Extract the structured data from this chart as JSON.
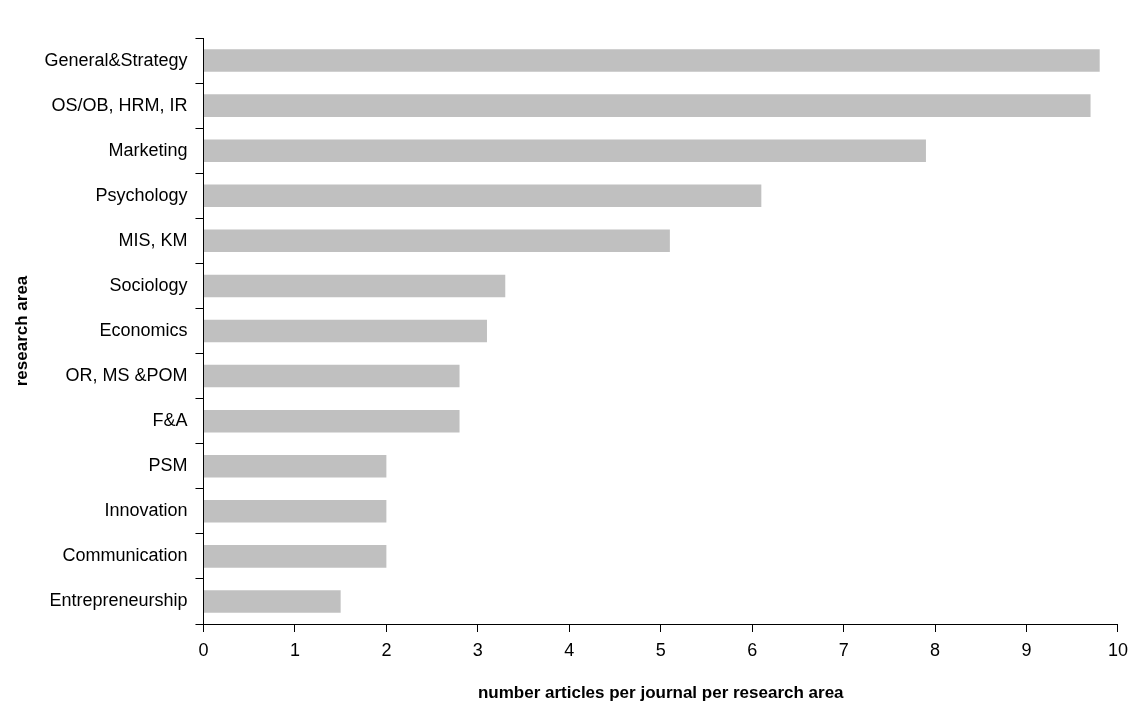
{
  "chart_data": {
    "type": "bar",
    "orientation": "horizontal",
    "xlabel": "number articles per journal per research area",
    "ylabel": "research area",
    "categories": [
      "General&Strategy",
      "OS/OB, HRM, IR",
      "Marketing",
      "Psychology",
      "MIS, KM",
      "Sociology",
      "Economics",
      "OR, MS &POM",
      "F&A",
      "PSM",
      "Innovation",
      "Communication",
      "Entrepreneurship"
    ],
    "values": [
      9.8,
      9.7,
      7.9,
      6.1,
      5.1,
      3.3,
      3.1,
      2.8,
      2.8,
      2.0,
      2.0,
      2.0,
      1.5
    ],
    "color": "#c0c0c0",
    "xlim": [
      0,
      10
    ],
    "xticks": [
      0,
      1,
      2,
      3,
      4,
      5,
      6,
      7,
      8,
      9,
      10
    ],
    "grid": false,
    "legend": false
  }
}
